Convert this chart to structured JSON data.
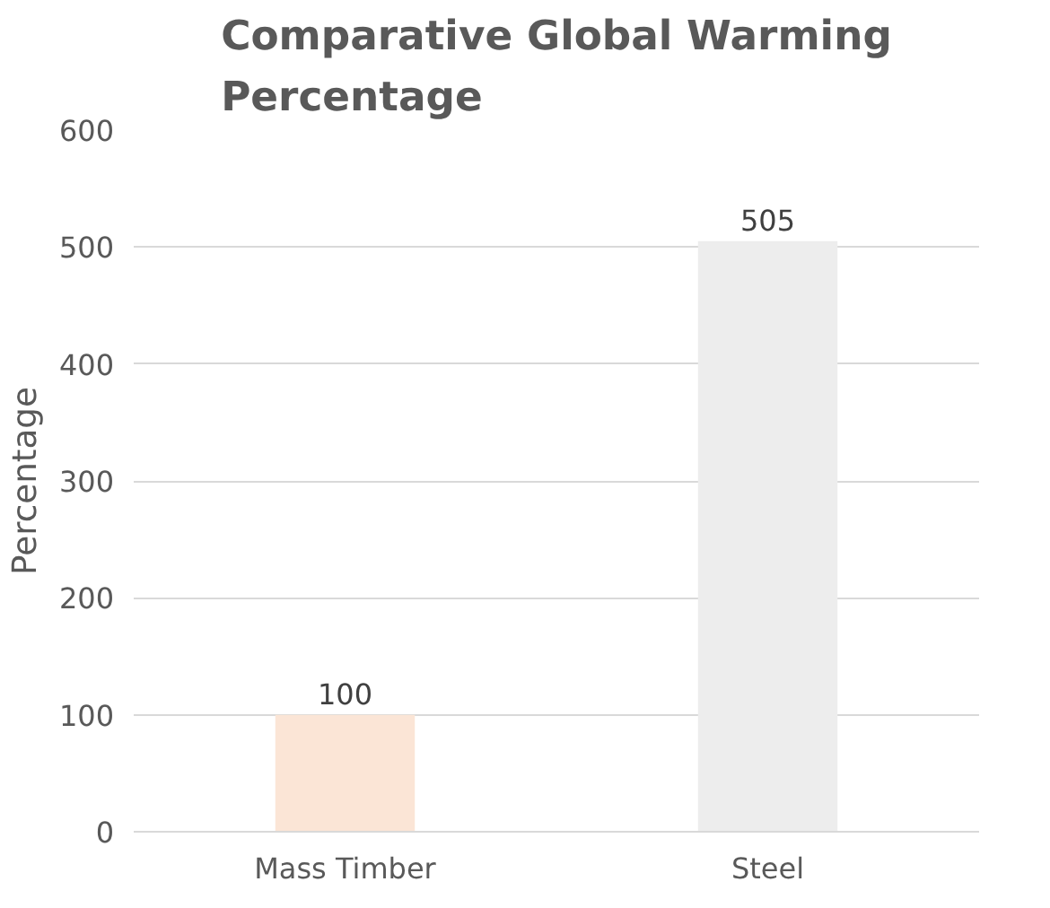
{
  "chart_data": {
    "type": "bar",
    "title": "Comparative Global Warming Percentage",
    "ylabel": "Percentage",
    "categories": [
      "Mass Timber",
      "Steel"
    ],
    "values": [
      100,
      505
    ],
    "colors": [
      "#fbe5d6",
      "#ededed"
    ],
    "ylim": [
      0,
      600
    ],
    "yticks": [
      0,
      100,
      200,
      300,
      400,
      500,
      600
    ],
    "grid": "y",
    "data_labels": true
  }
}
